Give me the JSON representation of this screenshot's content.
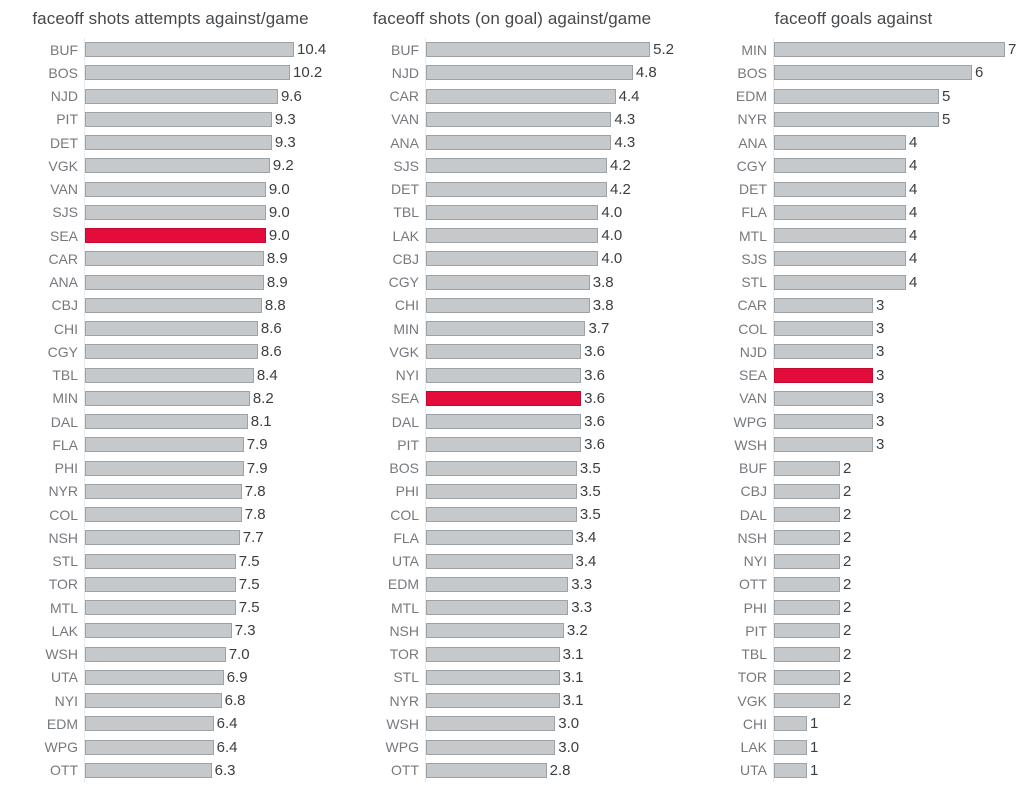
{
  "colors": {
    "bar_fill": "#c5c9cc",
    "bar_border": "#9ca2a6",
    "highlight_fill": "#e40c3a",
    "highlight_border": "#c30a33",
    "label_color": "#75797e",
    "value_color": "#3b3e41",
    "title_color": "#46494c",
    "axis_line": "#e8eaec"
  },
  "highlight_team": "SEA",
  "chart_data": [
    {
      "type": "bar",
      "orientation": "horizontal",
      "title": "faceoff shots attempts against/game",
      "highlight": "SEA",
      "value_decimals": 1,
      "xlim": [
        0,
        10.4
      ],
      "grid": false,
      "legend": "none",
      "categories": [
        "BUF",
        "BOS",
        "NJD",
        "PIT",
        "DET",
        "VGK",
        "VAN",
        "SJS",
        "SEA",
        "CAR",
        "ANA",
        "CBJ",
        "CHI",
        "CGY",
        "TBL",
        "MIN",
        "DAL",
        "FLA",
        "PHI",
        "NYR",
        "COL",
        "NSH",
        "STL",
        "TOR",
        "MTL",
        "LAK",
        "WSH",
        "UTA",
        "NYI",
        "EDM",
        "WPG",
        "OTT"
      ],
      "values": [
        10.4,
        10.2,
        9.6,
        9.3,
        9.3,
        9.2,
        9.0,
        9.0,
        9.0,
        8.9,
        8.9,
        8.8,
        8.6,
        8.6,
        8.4,
        8.2,
        8.1,
        7.9,
        7.9,
        7.8,
        7.8,
        7.7,
        7.5,
        7.5,
        7.5,
        7.3,
        7.0,
        6.9,
        6.8,
        6.4,
        6.4,
        6.3
      ]
    },
    {
      "type": "bar",
      "orientation": "horizontal",
      "title": "faceoff shots (on goal) against/game",
      "highlight": "SEA",
      "value_decimals": 1,
      "xlim": [
        0,
        5.2
      ],
      "grid": false,
      "legend": "none",
      "categories": [
        "BUF",
        "NJD",
        "CAR",
        "VAN",
        "ANA",
        "SJS",
        "DET",
        "TBL",
        "LAK",
        "CBJ",
        "CGY",
        "CHI",
        "MIN",
        "VGK",
        "NYI",
        "SEA",
        "DAL",
        "PIT",
        "BOS",
        "PHI",
        "COL",
        "FLA",
        "UTA",
        "EDM",
        "MTL",
        "NSH",
        "TOR",
        "STL",
        "NYR",
        "WSH",
        "WPG",
        "OTT"
      ],
      "values": [
        5.2,
        4.8,
        4.4,
        4.3,
        4.3,
        4.2,
        4.2,
        4.0,
        4.0,
        4.0,
        3.8,
        3.8,
        3.7,
        3.6,
        3.6,
        3.6,
        3.6,
        3.6,
        3.5,
        3.5,
        3.5,
        3.4,
        3.4,
        3.3,
        3.3,
        3.2,
        3.1,
        3.1,
        3.1,
        3.0,
        3.0,
        2.8
      ]
    },
    {
      "type": "bar",
      "orientation": "horizontal",
      "title": "faceoff goals against",
      "highlight": "SEA",
      "value_decimals": 0,
      "xlim": [
        0,
        7
      ],
      "grid": false,
      "legend": "none",
      "categories": [
        "MIN",
        "BOS",
        "EDM",
        "NYR",
        "ANA",
        "CGY",
        "DET",
        "FLA",
        "MTL",
        "SJS",
        "STL",
        "CAR",
        "COL",
        "NJD",
        "SEA",
        "VAN",
        "WPG",
        "WSH",
        "BUF",
        "CBJ",
        "DAL",
        "NSH",
        "NYI",
        "OTT",
        "PHI",
        "PIT",
        "TBL",
        "TOR",
        "VGK",
        "CHI",
        "LAK",
        "UTA"
      ],
      "values": [
        7,
        6,
        5,
        5,
        4,
        4,
        4,
        4,
        4,
        4,
        4,
        3,
        3,
        3,
        3,
        3,
        3,
        3,
        2,
        2,
        2,
        2,
        2,
        2,
        2,
        2,
        2,
        2,
        2,
        1,
        1,
        1
      ]
    }
  ]
}
